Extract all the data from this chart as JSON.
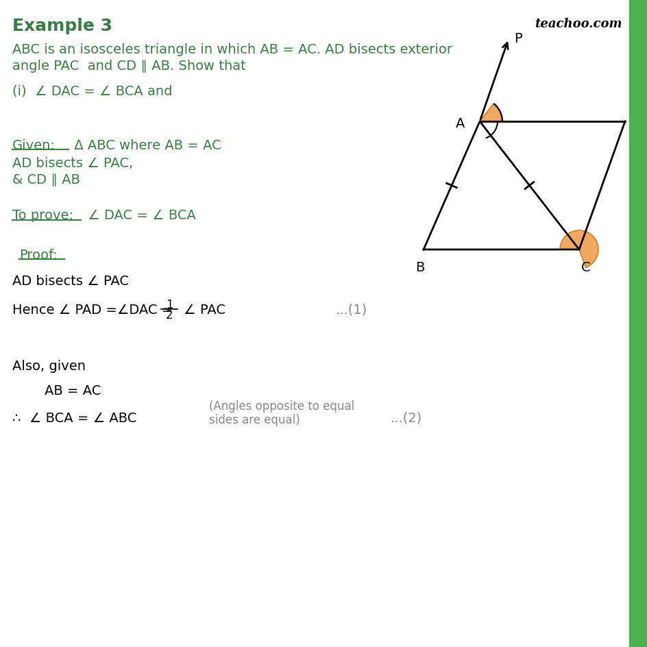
{
  "title": "Example 3",
  "watermark": "teachoo.com",
  "green_color": "#3a7d44",
  "black_color": "#000000",
  "gray_color": "#888888",
  "orange_color": "#f0a050",
  "bg_color": "#ffffff",
  "side_bar_color": "#4caf50",
  "description_line1": "ABC is an isosceles triangle in which AB = AC. AD bisects exterior",
  "description_line2": "angle PAC  and CD ∥ AB. Show that",
  "part_i": "(i)  ∠ DAC = ∠ BCA and",
  "given_label": "Given:",
  "given_text1": " Δ ABC where AB = AC",
  "given_text2": "AD bisects ∠ PAC,",
  "given_text3": "& CD ∥ AB",
  "toprove_label": "To prove:",
  "toprove_text": " ∠ DAC = ∠ BCA",
  "proof_label": "Proof:",
  "proof_text1": "AD bisects ∠ PAC",
  "proof_text2a": "Hence ∠ PAD =∠DAC = ",
  "proof_text2b": " ∠ PAC",
  "proof_ref1": "...(1)",
  "also_text": "Also, given",
  "ab_ac": "AB = AC",
  "bca_abc": "∴  ∠ BCA = ∠ ABC",
  "angles_note": "(Angles opposite to equal\nsides are equal)",
  "proof_ref2": "...(2)"
}
